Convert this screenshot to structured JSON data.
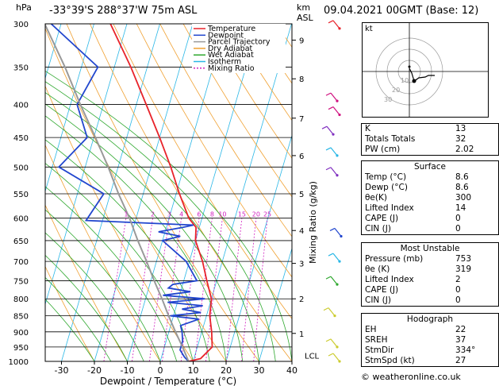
{
  "header": {
    "location": "-33°39'S  288°37'W  75m  ASL",
    "datetime": "09.04.2021  00GMT  (Base: 12)",
    "hpa_label": "hPa",
    "km_label": "km",
    "asl_label": "ASL"
  },
  "chart_data": {
    "type": "line",
    "xlabel": "Dewpoint / Temperature (°C)",
    "ylabel_right": "Mixing Ratio (g/kg)",
    "x_ticks": [
      -30,
      -20,
      -10,
      0,
      10,
      20,
      30,
      40
    ],
    "pressure_levels": [
      300,
      350,
      400,
      450,
      500,
      550,
      600,
      650,
      700,
      750,
      800,
      850,
      900,
      950,
      1000
    ],
    "km_ticks": [
      {
        "km": "1",
        "p": 905
      },
      {
        "km": "2",
        "p": 800
      },
      {
        "km": "3",
        "p": 705
      },
      {
        "km": "4",
        "p": 627
      },
      {
        "km": "5",
        "p": 550
      },
      {
        "km": "6",
        "p": 480
      },
      {
        "km": "7",
        "p": 420
      },
      {
        "km": "8",
        "p": 365
      },
      {
        "km": "9",
        "p": 318
      }
    ],
    "lcl_label": "LCL",
    "mixing_ratio_labels": [
      "1",
      "2",
      "3",
      "4",
      "6",
      "8",
      "10",
      "15",
      "20",
      "25"
    ],
    "legend": [
      "Temperature",
      "Dewpoint",
      "Parcel Trajectory",
      "Dry Adiabat",
      "Wet Adiabat",
      "Isotherm",
      "Mixing Ratio"
    ],
    "series": [
      {
        "name": "Temperature",
        "color": "#e8232a",
        "points": [
          [
            1000,
            8.6
          ],
          [
            990,
            12
          ],
          [
            950,
            14.5
          ],
          [
            900,
            13
          ],
          [
            850,
            11
          ],
          [
            800,
            10
          ],
          [
            750,
            7
          ],
          [
            700,
            4
          ],
          [
            650,
            0
          ],
          [
            620,
            -1
          ],
          [
            600,
            -4
          ],
          [
            550,
            -9
          ],
          [
            500,
            -14
          ],
          [
            450,
            -20
          ],
          [
            400,
            -27
          ],
          [
            350,
            -35
          ],
          [
            300,
            -45
          ]
        ]
      },
      {
        "name": "Dewpoint",
        "color": "#2146ce",
        "points": [
          [
            1000,
            8.6
          ],
          [
            985,
            7
          ],
          [
            960,
            5
          ],
          [
            930,
            5
          ],
          [
            900,
            4
          ],
          [
            880,
            3
          ],
          [
            860,
            8
          ],
          [
            850,
            -1
          ],
          [
            840,
            8
          ],
          [
            830,
            2
          ],
          [
            820,
            8
          ],
          [
            810,
            -3
          ],
          [
            800,
            8
          ],
          [
            790,
            -5
          ],
          [
            780,
            3
          ],
          [
            770,
            -4
          ],
          [
            760,
            -3
          ],
          [
            750,
            4
          ],
          [
            700,
            -1
          ],
          [
            650,
            -10
          ],
          [
            640,
            -5
          ],
          [
            630,
            -12
          ],
          [
            620,
            -5
          ],
          [
            615,
            -2
          ],
          [
            605,
            -35
          ],
          [
            550,
            -32
          ],
          [
            500,
            -48
          ],
          [
            450,
            -42
          ],
          [
            400,
            -48
          ],
          [
            350,
            -45
          ],
          [
            300,
            -63
          ]
        ]
      },
      {
        "name": "Parcel Trajectory",
        "color": "#999999",
        "points": [
          [
            1000,
            8.6
          ],
          [
            950,
            5.5
          ],
          [
            900,
            2
          ],
          [
            850,
            -1.5
          ],
          [
            800,
            -5
          ],
          [
            750,
            -9
          ],
          [
            700,
            -13
          ],
          [
            650,
            -17.5
          ],
          [
            600,
            -22
          ],
          [
            550,
            -27.5
          ],
          [
            500,
            -33
          ],
          [
            450,
            -39.5
          ],
          [
            400,
            -47
          ],
          [
            350,
            -55
          ],
          [
            300,
            -65
          ]
        ]
      }
    ]
  },
  "hodograph": {
    "label": "kt",
    "speeds": [
      "10",
      "20",
      "30"
    ]
  },
  "indices": [
    [
      "K",
      "13"
    ],
    [
      "Totals Totals",
      "32"
    ],
    [
      "PW (cm)",
      "2.02"
    ]
  ],
  "surface": {
    "title": "Surface",
    "rows": [
      [
        "Temp (°C)",
        "8.6"
      ],
      [
        "Dewp (°C)",
        "8.6"
      ],
      [
        "θe(K)",
        "300"
      ],
      [
        "Lifted Index",
        "14"
      ],
      [
        "CAPE (J)",
        "0"
      ],
      [
        "CIN (J)",
        "0"
      ]
    ]
  },
  "unstable": {
    "title": "Most Unstable",
    "rows": [
      [
        "Pressure (mb)",
        "753"
      ],
      [
        "θe (K)",
        "319"
      ],
      [
        "Lifted Index",
        "2"
      ],
      [
        "CAPE (J)",
        "0"
      ],
      [
        "CIN (J)",
        "0"
      ]
    ]
  },
  "hodotable": {
    "title": "Hodograph",
    "rows": [
      [
        "EH",
        "22"
      ],
      [
        "SREH",
        "37"
      ],
      [
        "StmDir",
        "334°"
      ],
      [
        "StmSpd (kt)",
        "27"
      ]
    ]
  },
  "copyright": "© weatheronline.co.uk"
}
